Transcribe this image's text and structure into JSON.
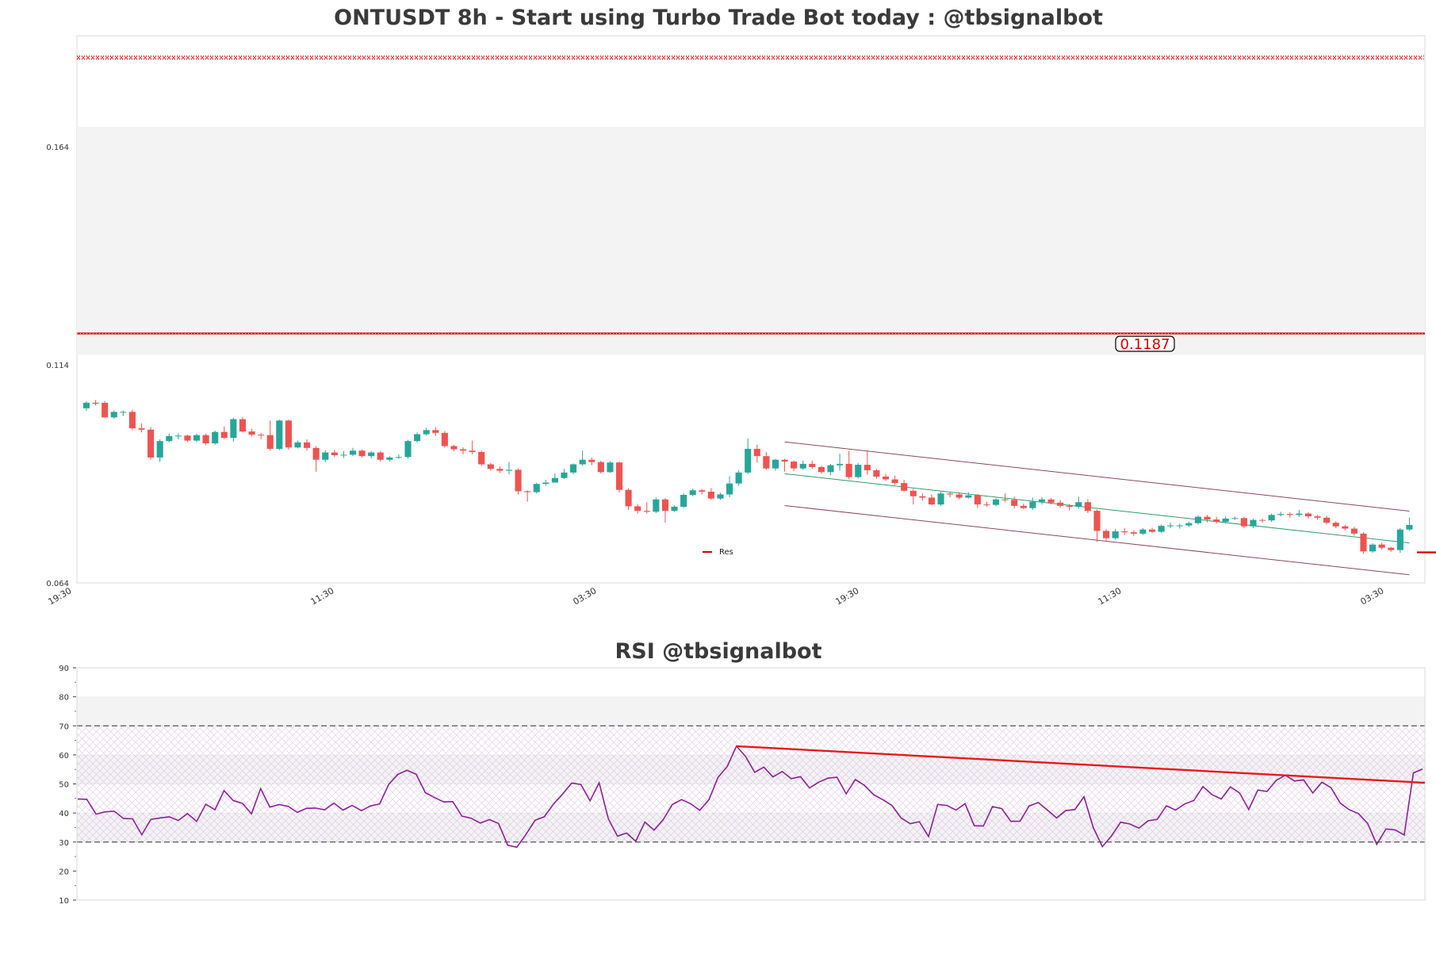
{
  "chart_data": [
    {
      "type": "candlestick",
      "title": "ONTUSDT 8h - Start using Turbo Trade Bot today : @tbsignalbot",
      "ylim": [
        0.064,
        0.184
      ],
      "y_ticks": [
        "0.164",
        "0.114",
        "0.064"
      ],
      "x_ticks": [
        "19:30",
        "11:30",
        "03:30",
        "19:30",
        "11:30",
        "03:30"
      ],
      "legend": {
        "entries": [
          "Res"
        ],
        "placement": "lower-center"
      },
      "resistance_label": "0.1187",
      "levels": {
        "top_band": 0.1792,
        "resistance": 0.1187,
        "last_marker": 0.0707
      },
      "shaded_band": [
        0.114,
        0.164
      ],
      "candles": [
        [
          0.1023,
          0.1035,
          0.1017,
          0.1038
        ],
        [
          0.1035,
          0.1033,
          0.1029,
          0.1041
        ],
        [
          0.1035,
          0.1003,
          0.1002,
          0.1039
        ],
        [
          0.1003,
          0.1015,
          0.1,
          0.1018
        ],
        [
          0.1015,
          0.1015,
          0.1006,
          0.1018
        ],
        [
          0.1015,
          0.0979,
          0.0975,
          0.102
        ],
        [
          0.0979,
          0.0976,
          0.097,
          0.099
        ],
        [
          0.0976,
          0.0915,
          0.091,
          0.0982
        ],
        [
          0.0915,
          0.0951,
          0.0905,
          0.0955
        ],
        [
          0.0951,
          0.0962,
          0.0948,
          0.0968
        ],
        [
          0.0962,
          0.0963,
          0.0955,
          0.0968
        ],
        [
          0.0963,
          0.0952,
          0.0949,
          0.0965
        ],
        [
          0.0952,
          0.0964,
          0.0949,
          0.0967
        ],
        [
          0.0964,
          0.0946,
          0.0942,
          0.0967
        ],
        [
          0.0946,
          0.0971,
          0.0943,
          0.0974
        ],
        [
          0.0971,
          0.0958,
          0.0955,
          0.0983
        ],
        [
          0.0958,
          0.0999,
          0.095,
          0.1002
        ],
        [
          0.0999,
          0.0972,
          0.097,
          0.1003
        ],
        [
          0.0972,
          0.0965,
          0.0962,
          0.0978
        ],
        [
          0.0965,
          0.0964,
          0.0955,
          0.0969
        ],
        [
          0.0964,
          0.0934,
          0.093,
          0.0996
        ],
        [
          0.0934,
          0.0996,
          0.0931,
          0.0998
        ],
        [
          0.0996,
          0.0937,
          0.0932,
          0.0998
        ],
        [
          0.0937,
          0.0948,
          0.0935,
          0.0952
        ],
        [
          0.0948,
          0.0936,
          0.093,
          0.0955
        ],
        [
          0.0936,
          0.091,
          0.0884,
          0.094
        ],
        [
          0.091,
          0.0926,
          0.0905,
          0.0931
        ],
        [
          0.0926,
          0.092,
          0.0916,
          0.0932
        ],
        [
          0.092,
          0.0921,
          0.0914,
          0.0929
        ],
        [
          0.0921,
          0.093,
          0.0918,
          0.0936
        ],
        [
          0.093,
          0.0918,
          0.0915,
          0.0933
        ],
        [
          0.0918,
          0.0926,
          0.0913,
          0.0929
        ],
        [
          0.0926,
          0.091,
          0.0906,
          0.0929
        ],
        [
          0.091,
          0.0915,
          0.0906,
          0.0918
        ],
        [
          0.0915,
          0.0916,
          0.0912,
          0.0922
        ],
        [
          0.0916,
          0.0951,
          0.0913,
          0.0954
        ],
        [
          0.0951,
          0.0966,
          0.0948,
          0.097
        ],
        [
          0.0966,
          0.0975,
          0.0963,
          0.098
        ],
        [
          0.0975,
          0.0969,
          0.0962,
          0.0982
        ],
        [
          0.0969,
          0.094,
          0.0937,
          0.0973
        ],
        [
          0.094,
          0.0933,
          0.0929,
          0.0943
        ],
        [
          0.0933,
          0.093,
          0.0922,
          0.0937
        ],
        [
          0.093,
          0.0927,
          0.0922,
          0.0952
        ],
        [
          0.0927,
          0.09,
          0.0896,
          0.093
        ],
        [
          0.09,
          0.089,
          0.0886,
          0.0903
        ],
        [
          0.089,
          0.0886,
          0.0881,
          0.0895
        ],
        [
          0.0886,
          0.0888,
          0.0878,
          0.0905
        ],
        [
          0.0888,
          0.0841,
          0.0834,
          0.0891
        ],
        [
          0.0841,
          0.0839,
          0.0818,
          0.0843
        ],
        [
          0.0839,
          0.0857,
          0.0836,
          0.086
        ],
        [
          0.0857,
          0.086,
          0.0853,
          0.0866
        ],
        [
          0.086,
          0.087,
          0.086,
          0.088
        ],
        [
          0.087,
          0.0882,
          0.0868,
          0.089
        ],
        [
          0.0882,
          0.09,
          0.0878,
          0.0902
        ],
        [
          0.09,
          0.091,
          0.0897,
          0.093
        ],
        [
          0.091,
          0.0905,
          0.0898,
          0.0915
        ],
        [
          0.0905,
          0.0883,
          0.088,
          0.0908
        ],
        [
          0.0883,
          0.0904,
          0.0881,
          0.0907
        ],
        [
          0.0904,
          0.0844,
          0.0838,
          0.0906
        ],
        [
          0.0844,
          0.0808,
          0.08,
          0.0847
        ],
        [
          0.0808,
          0.0798,
          0.0792,
          0.0813
        ],
        [
          0.0798,
          0.0796,
          0.0792,
          0.0817
        ],
        [
          0.0796,
          0.0823,
          0.0793,
          0.0827
        ],
        [
          0.0823,
          0.0798,
          0.0772,
          0.0826
        ],
        [
          0.0798,
          0.0807,
          0.0796,
          0.081
        ],
        [
          0.0807,
          0.0833,
          0.0804,
          0.0836
        ],
        [
          0.0833,
          0.0843,
          0.083,
          0.0847
        ],
        [
          0.0843,
          0.084,
          0.0834,
          0.0846
        ],
        [
          0.084,
          0.0825,
          0.0822,
          0.0848
        ],
        [
          0.0825,
          0.0834,
          0.0822,
          0.0838
        ],
        [
          0.0834,
          0.0858,
          0.0828,
          0.0874
        ],
        [
          0.0858,
          0.0882,
          0.0853,
          0.0887
        ],
        [
          0.0882,
          0.0934,
          0.0879,
          0.0957
        ],
        [
          0.0934,
          0.0918,
          0.0904,
          0.0943
        ],
        [
          0.0918,
          0.0891,
          0.0888,
          0.0927
        ],
        [
          0.0891,
          0.091,
          0.0886,
          0.0912
        ],
        [
          0.091,
          0.0906,
          0.0884,
          0.0912
        ],
        [
          0.0906,
          0.0891,
          0.0885,
          0.0908
        ],
        [
          0.0891,
          0.0901,
          0.0888,
          0.0908
        ],
        [
          0.0901,
          0.0894,
          0.089,
          0.0908
        ],
        [
          0.0894,
          0.0883,
          0.088,
          0.0897
        ],
        [
          0.0883,
          0.0898,
          0.0876,
          0.0901
        ],
        [
          0.0898,
          0.0901,
          0.0886,
          0.0923
        ],
        [
          0.0901,
          0.0872,
          0.0867,
          0.0929
        ],
        [
          0.0872,
          0.0899,
          0.0869,
          0.0903
        ],
        [
          0.0899,
          0.0887,
          0.0877,
          0.0931
        ],
        [
          0.0887,
          0.0873,
          0.0869,
          0.089
        ],
        [
          0.0873,
          0.0867,
          0.0863,
          0.0879
        ],
        [
          0.0867,
          0.0859,
          0.0855,
          0.0875
        ],
        [
          0.0859,
          0.0842,
          0.084,
          0.0866
        ],
        [
          0.0842,
          0.083,
          0.0812,
          0.0846
        ],
        [
          0.083,
          0.0827,
          0.082,
          0.0836
        ],
        [
          0.0827,
          0.0812,
          0.081,
          0.0834
        ],
        [
          0.0812,
          0.0836,
          0.0809,
          0.084
        ],
        [
          0.0836,
          0.0834,
          0.0828,
          0.0839
        ],
        [
          0.0834,
          0.0827,
          0.0823,
          0.0839
        ],
        [
          0.0827,
          0.0832,
          0.0825,
          0.0839
        ],
        [
          0.0832,
          0.0812,
          0.0804,
          0.0835
        ],
        [
          0.0812,
          0.0811,
          0.0807,
          0.0818
        ],
        [
          0.0811,
          0.0823,
          0.0808,
          0.0826
        ],
        [
          0.0823,
          0.0822,
          0.0817,
          0.0836
        ],
        [
          0.0822,
          0.0809,
          0.0803,
          0.0829
        ],
        [
          0.0809,
          0.0804,
          0.0802,
          0.0814
        ],
        [
          0.0804,
          0.0818,
          0.08,
          0.0827
        ],
        [
          0.0818,
          0.0823,
          0.0812,
          0.0828
        ],
        [
          0.0823,
          0.0816,
          0.0812,
          0.0826
        ],
        [
          0.0816,
          0.0809,
          0.0805,
          0.0822
        ],
        [
          0.0809,
          0.0807,
          0.0799,
          0.0813
        ],
        [
          0.0807,
          0.0817,
          0.0803,
          0.0829
        ],
        [
          0.0817,
          0.0798,
          0.0793,
          0.0824
        ],
        [
          0.0798,
          0.0754,
          0.073,
          0.0801
        ],
        [
          0.0754,
          0.0738,
          0.0733,
          0.0758
        ],
        [
          0.0738,
          0.0753,
          0.0735,
          0.0758
        ],
        [
          0.0753,
          0.0751,
          0.0745,
          0.076
        ],
        [
          0.0751,
          0.0748,
          0.0743,
          0.0755
        ],
        [
          0.0748,
          0.0757,
          0.0745,
          0.076
        ],
        [
          0.0757,
          0.0752,
          0.0749,
          0.0761
        ],
        [
          0.0752,
          0.0765,
          0.075,
          0.0768
        ],
        [
          0.0765,
          0.0766,
          0.076,
          0.0772
        ],
        [
          0.0766,
          0.0766,
          0.0759,
          0.077
        ],
        [
          0.0766,
          0.0771,
          0.0762,
          0.0774
        ],
        [
          0.0771,
          0.0785,
          0.0768,
          0.0788
        ],
        [
          0.0785,
          0.0779,
          0.0773,
          0.0789
        ],
        [
          0.0779,
          0.0774,
          0.077,
          0.0785
        ],
        [
          0.0774,
          0.0781,
          0.077,
          0.0786
        ],
        [
          0.0781,
          0.0782,
          0.0778,
          0.0786
        ],
        [
          0.0782,
          0.0764,
          0.076,
          0.0785
        ],
        [
          0.0764,
          0.0778,
          0.076,
          0.0781
        ],
        [
          0.0778,
          0.0777,
          0.0772,
          0.0781
        ],
        [
          0.0777,
          0.0789,
          0.0774,
          0.0792
        ],
        [
          0.0789,
          0.0791,
          0.0786,
          0.0796
        ],
        [
          0.0791,
          0.0789,
          0.0783,
          0.0795
        ],
        [
          0.0789,
          0.0792,
          0.0785,
          0.08
        ],
        [
          0.0792,
          0.0786,
          0.0781,
          0.0795
        ],
        [
          0.0786,
          0.0783,
          0.0778,
          0.0789
        ],
        [
          0.0783,
          0.0772,
          0.0768,
          0.0787
        ],
        [
          0.0772,
          0.0764,
          0.076,
          0.0775
        ],
        [
          0.0764,
          0.0759,
          0.0755,
          0.0767
        ],
        [
          0.0759,
          0.0748,
          0.0744,
          0.0763
        ],
        [
          0.0748,
          0.0709,
          0.0704,
          0.0751
        ],
        [
          0.0709,
          0.0724,
          0.0706,
          0.0727
        ],
        [
          0.0724,
          0.0717,
          0.0713,
          0.0728
        ],
        [
          0.0717,
          0.0712,
          0.0708,
          0.0719
        ],
        [
          0.0712,
          0.0757,
          0.0706,
          0.076
        ],
        [
          0.0757,
          0.0767,
          0.0754,
          0.0783
        ]
      ]
    },
    {
      "type": "line",
      "title": "RSI @tbsignalbot",
      "ylim": [
        10,
        90
      ],
      "y_ticks": [
        "90",
        "80",
        "70",
        "60",
        "50",
        "40",
        "30",
        "20",
        "10"
      ],
      "reference_lines": [
        70,
        30
      ],
      "bands": [
        [
          20,
          30
        ],
        [
          30,
          40
        ],
        [
          40,
          50
        ],
        [
          50,
          60
        ],
        [
          60,
          70
        ],
        [
          70,
          80
        ],
        [
          80,
          90
        ]
      ],
      "series": [
        {
          "values": [
            44.8,
            44.7,
            39.6,
            40.4,
            40.6,
            38.1,
            38.0,
            32.5,
            37.8,
            38.3,
            38.7,
            37.4,
            39.8,
            37.1,
            43.0,
            41.1,
            47.7,
            44.3,
            43.3,
            39.7,
            48.4,
            42.0,
            42.9,
            42.3,
            40.2,
            41.6,
            41.7,
            41.1,
            43.4,
            41.0,
            42.6,
            40.8,
            42.4,
            43.1,
            49.9,
            53.3,
            54.7,
            53.3,
            47.0,
            45.3,
            43.8,
            43.9,
            38.9,
            38.2,
            36.5,
            37.7,
            36.4,
            28.9,
            28.2,
            32.6,
            37.5,
            38.7,
            43.0,
            46.5,
            50.3,
            49.8,
            44.2,
            50.4,
            38.0,
            32.0,
            33.1,
            30.3,
            36.9,
            34.1,
            37.7,
            42.9,
            44.6,
            43.2,
            40.9,
            44.6,
            52.3,
            56.0,
            63.0,
            59.5,
            54.0,
            55.8,
            52.4,
            54.3,
            51.8,
            52.5,
            48.6,
            50.6,
            52.0,
            52.3,
            46.6,
            51.5,
            49.5,
            46.3,
            44.6,
            42.6,
            38.3,
            36.3,
            37.0,
            31.9,
            42.9,
            42.6,
            41.0,
            43.2,
            35.6,
            35.5,
            42.2,
            41.5,
            37.1,
            37.2,
            42.4,
            43.6,
            41.0,
            38.3,
            40.8,
            41.2,
            45.6,
            35.0,
            28.4,
            32.1,
            36.8,
            36.2,
            34.8,
            37.3,
            37.8,
            42.5,
            41.0,
            43.1,
            44.3,
            49.1,
            46.3,
            44.8,
            49.0,
            46.9,
            41.2,
            47.9,
            47.4,
            51.2,
            53.0,
            51.0,
            51.4,
            46.9,
            50.6,
            48.7,
            43.4,
            41.1,
            39.8,
            36.4,
            29.2,
            34.5,
            34.2,
            32.4,
            53.8,
            55.1
          ]
        }
      ],
      "trendline": {
        "from": 63.0,
        "to": 50.4
      }
    }
  ],
  "colors": {
    "up": "#26a69a",
    "down": "#ef5350",
    "resistance": "#d40000",
    "rsi_line": "#8e1f99",
    "rsi_trend": "#e8191c",
    "channel_bounds": "#8b4a5a",
    "channel_mid": "#2e9e66",
    "band_fill": "#f3f3f4",
    "title": "#3a3a3a"
  }
}
